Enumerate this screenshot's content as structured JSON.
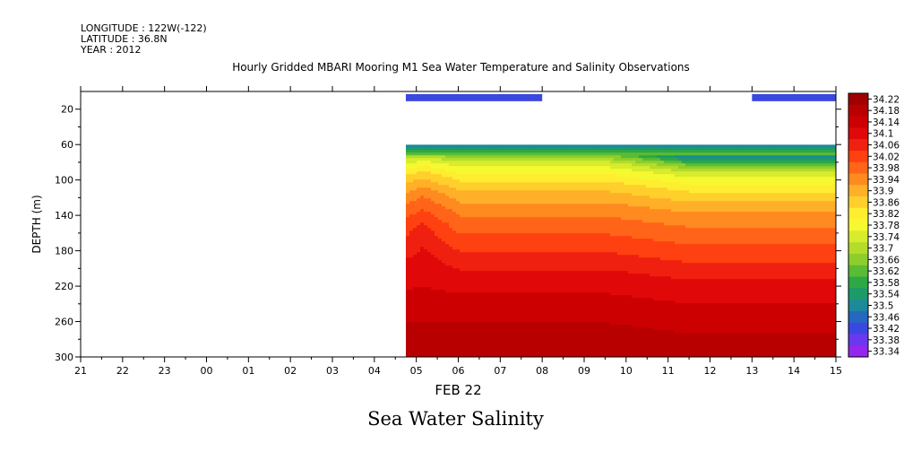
{
  "header": {
    "longitude": "LONGITUDE : 122W(-122)",
    "latitude": "LATITUDE : 36.8N",
    "year": "YEAR : 2012"
  },
  "chart_data": {
    "type": "heatmap",
    "title": "Hourly Gridded MBARI Mooring M1 Sea Water Temperature and Salinity Observations",
    "bottom_title": "Sea Water Salinity",
    "xlabel": "FEB 22",
    "ylabel": "DEPTH (m)",
    "x_ticks": [
      "21",
      "22",
      "23",
      "00",
      "01",
      "02",
      "03",
      "04",
      "05",
      "06",
      "07",
      "08",
      "09",
      "10",
      "11",
      "12",
      "13",
      "14",
      "15"
    ],
    "y_ticks": [
      20,
      60,
      100,
      140,
      180,
      220,
      260,
      300
    ],
    "ylim": [
      300,
      0
    ],
    "y_inverted": true,
    "colorbar_levels": [
      "34.22",
      "34.18",
      "34.14",
      "34.1",
      "34.06",
      "34.02",
      "33.98",
      "33.94",
      "33.9",
      "33.86",
      "33.82",
      "33.78",
      "33.74",
      "33.7",
      "33.66",
      "33.62",
      "33.58",
      "33.54",
      "33.5",
      "33.46",
      "33.42",
      "33.38",
      "33.34"
    ],
    "colorbar_colors": [
      "#a00000",
      "#b80000",
      "#cc0000",
      "#e00808",
      "#f02010",
      "#ff4010",
      "#ff6418",
      "#ff8a20",
      "#ffb028",
      "#ffd02c",
      "#ffee30",
      "#f6f830",
      "#d6ec2c",
      "#b4dc2a",
      "#8ece2c",
      "#5abc34",
      "#2ea844",
      "#1c9a6a",
      "#1c8a98",
      "#2468c0",
      "#3a48e0",
      "#6a38f0",
      "#9426ee"
    ],
    "surface_bars": [
      {
        "start_hour": 4.75,
        "end_hour": 8.0,
        "depth_min": 3,
        "depth_max": 11,
        "salinity": "33.42"
      },
      {
        "start_hour": 13.0,
        "end_hour": 15.0,
        "depth_min": 3,
        "depth_max": 11,
        "salinity": "33.42"
      }
    ],
    "field": {
      "start_hour": 4.75,
      "end_hour": 15.0,
      "depth_min": 60,
      "depth_max": 300,
      "description_profile_depths": [
        60,
        70,
        80,
        100,
        120,
        140,
        160,
        180,
        200,
        220,
        240,
        260,
        280,
        300
      ],
      "profile_salinity": [
        33.5,
        33.66,
        33.76,
        33.86,
        33.93,
        33.98,
        34.02,
        34.06,
        34.1,
        34.13,
        34.16,
        34.18,
        34.2,
        34.22
      ]
    }
  }
}
